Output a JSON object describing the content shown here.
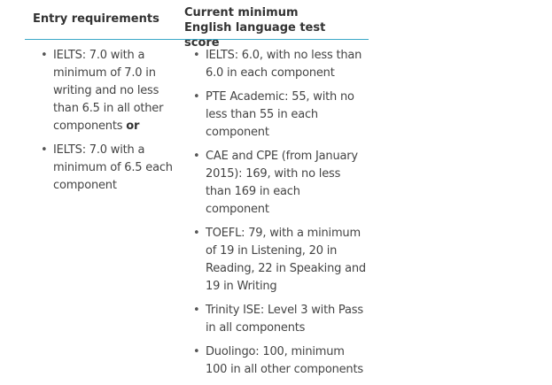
{
  "headers": {
    "entry": "Entry requirements",
    "score": "Current minimum English language test score"
  },
  "entry_items": [
    {
      "text": "IELTS: 7.0 with a minimum of 7.0 in writing and no less than 6.5 in all other components",
      "bold": "or"
    },
    {
      "text": "IELTS: 7.0 with a minimum of 6.5 each component"
    }
  ],
  "score_items": [
    "IELTS: 6.0, with no less than 6.0 in each component",
    "PTE Academic: 55, with no less than 55 in each component",
    "CAE and CPE (from January 2015): 169, with no less than 169 in each component",
    "TOEFL: 79, with a minimum of 19 in Listening, 20 in Reading, 22 in Speaking and 19 in Writing",
    "Trinity ISE: Level 3 with Pass in all components",
    "Duolingo: 100, minimum 100 in all other components"
  ],
  "colors": {
    "rule": "#3aa8c8"
  }
}
